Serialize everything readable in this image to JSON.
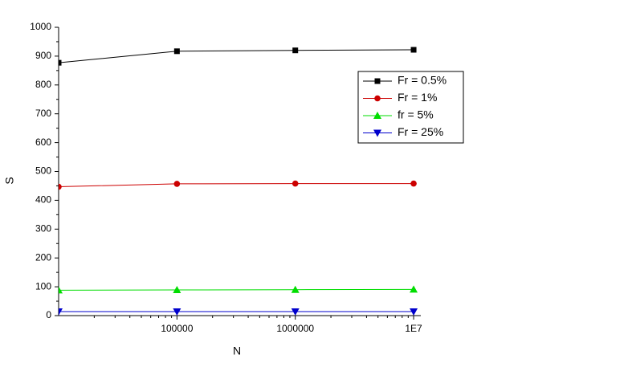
{
  "chart_data": {
    "type": "line",
    "x_label": "N",
    "y_label": "S",
    "x": [
      10000,
      100000,
      1000000,
      10000000
    ],
    "series": [
      {
        "name": "Fr = 0.5%",
        "color": "#000000",
        "marker": "square",
        "values": [
          877,
          917,
          920,
          922
        ]
      },
      {
        "name": "Fr = 1%",
        "color": "#cc0000",
        "marker": "circle",
        "values": [
          447,
          457,
          458,
          458
        ]
      },
      {
        "name": "fr = 5%",
        "color": "#00dd00",
        "marker": "triangle-up",
        "values": [
          88,
          89,
          90,
          91
        ]
      },
      {
        "name": "Fr = 25%",
        "color": "#0000cc",
        "marker": "triangle-down",
        "values": [
          14,
          14,
          14,
          14
        ]
      }
    ],
    "xscale": "log",
    "xlim": [
      10000,
      11500000
    ],
    "xticks": [
      100000,
      1000000,
      {
        "value": 10000000,
        "label": "1E7"
      }
    ],
    "ylim": [
      0,
      1000
    ],
    "yticks": [
      0,
      100,
      200,
      300,
      400,
      500,
      600,
      700,
      800,
      900,
      1000
    ],
    "grid": false,
    "legend": "upper right"
  }
}
